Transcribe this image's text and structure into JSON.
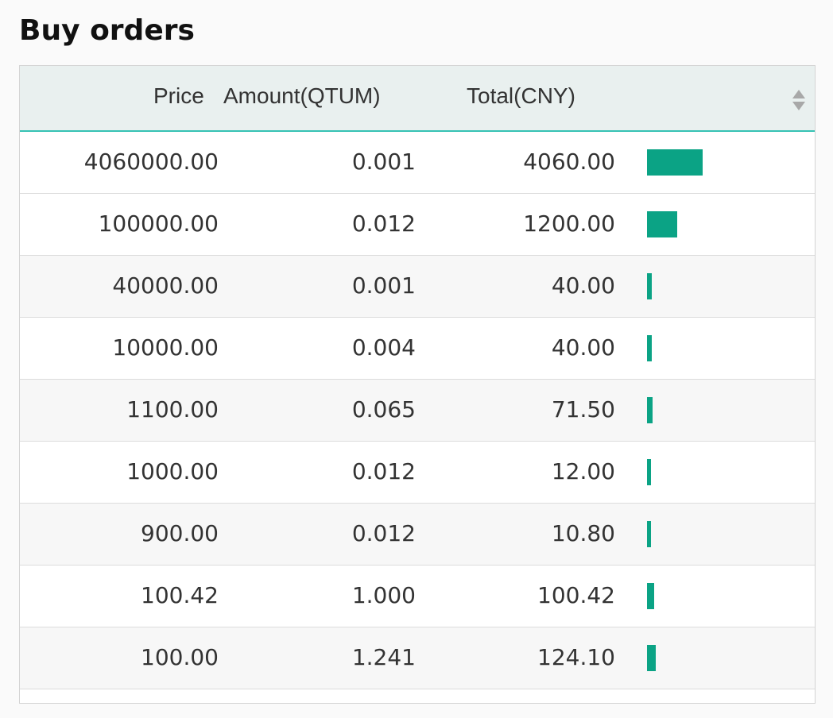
{
  "title": "Buy orders",
  "table": {
    "headers": {
      "price": "Price",
      "amount": "Amount(QTUM)",
      "total": "Total(CNY)"
    },
    "sort_icon": "sort-icon",
    "bar_color": "#0ba385",
    "rows": [
      {
        "price": "4060000.00",
        "amount": "0.001",
        "total": "4060.00",
        "depth": 1.0
      },
      {
        "price": "100000.00",
        "amount": "0.012",
        "total": "1200.00",
        "depth": 0.54
      },
      {
        "price": "40000.00",
        "amount": "0.001",
        "total": "40.00",
        "depth": 0.08
      },
      {
        "price": "10000.00",
        "amount": "0.004",
        "total": "40.00",
        "depth": 0.08
      },
      {
        "price": "1100.00",
        "amount": "0.065",
        "total": "71.50",
        "depth": 0.1
      },
      {
        "price": "1000.00",
        "amount": "0.012",
        "total": "12.00",
        "depth": 0.05
      },
      {
        "price": "900.00",
        "amount": "0.012",
        "total": "10.80",
        "depth": 0.05
      },
      {
        "price": "100.42",
        "amount": "1.000",
        "total": "100.42",
        "depth": 0.13
      },
      {
        "price": "100.00",
        "amount": "1.241",
        "total": "124.10",
        "depth": 0.16
      }
    ]
  }
}
